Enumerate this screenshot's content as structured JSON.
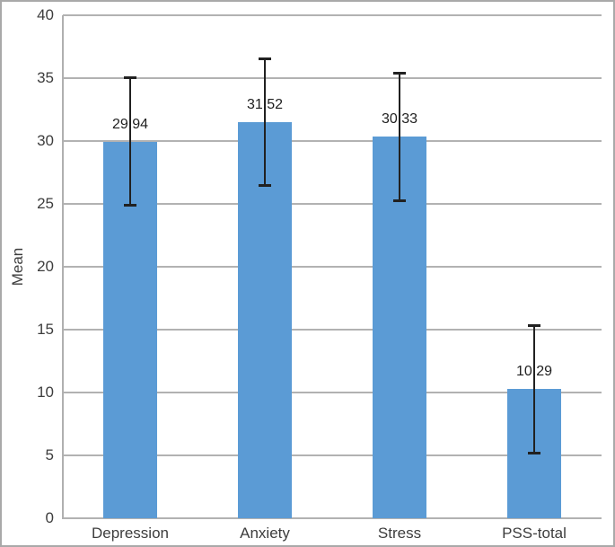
{
  "figure": {
    "background": "#ffffff",
    "border_color": "#a9a9a9"
  },
  "chart_data": {
    "type": "bar",
    "title": "",
    "xlabel": "",
    "ylabel": "Mean",
    "categories": [
      "Depression",
      "Anxiety",
      "Stress",
      "PSS-total"
    ],
    "values": [
      29.94,
      31.52,
      30.33,
      10.29
    ],
    "value_labels": [
      "29.94",
      "31.52",
      "30.33",
      "10.29"
    ],
    "error_upper": [
      35.1,
      36.6,
      35.4,
      15.35
    ],
    "error_lower": [
      24.9,
      26.5,
      25.3,
      5.25
    ],
    "ylim": [
      0,
      40
    ],
    "yticks": [
      0,
      5,
      10,
      15,
      20,
      25,
      30,
      35,
      40
    ],
    "grid": true,
    "legend": "none",
    "bar_color": "#5b9bd5",
    "gridline_color": "#b2b2b2",
    "axis_line_color": "#b0b0b0",
    "error_bar_color": "#212121",
    "value_label_color": "#1f1f1f",
    "tick_label_color": "#3d3d3d"
  }
}
